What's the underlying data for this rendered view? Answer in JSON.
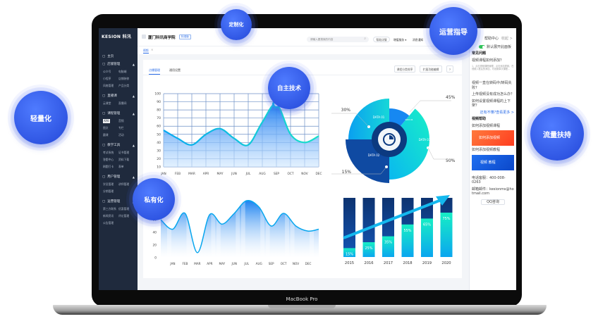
{
  "device": {
    "label": "MacBook Pro"
  },
  "bubbles": [
    "定制化",
    "运营指导",
    "自主技术",
    "轻量化",
    "流量扶持",
    "私有化"
  ],
  "sidebar": {
    "logo": "KESION 科汛",
    "groups": [
      {
        "label": "主页",
        "items": []
      },
      {
        "label": "店铺管理",
        "items": [
          "公众号",
          "电脑端",
          "小程序",
          "店铺装修",
          "风格管理",
          "产品分类"
        ]
      },
      {
        "label": "直播课",
        "items": [
          "云课堂",
          "直播间"
        ]
      },
      {
        "label": "课程管理",
        "items": [
          "视频",
          "音频",
          "图文",
          "专栏",
          "圆课",
          "活动"
        ]
      },
      {
        "label": "教学工具",
        "items": [
          "考试系统",
          "证书管理",
          "答题中心",
          "资料下载",
          "刷题打卡",
          "表单"
        ]
      },
      {
        "label": "用户管理",
        "items": [
          "学员管理",
          "讲师管理",
          "分销管理"
        ]
      },
      {
        "label": "运营管理",
        "items": [
          "第三方联系",
          "优惠管理",
          "新闻资讯",
          "评论管理",
          "公告管理"
        ]
      }
    ]
  },
  "header": {
    "title": "厦门科讯商学院",
    "badge": "标准版",
    "search_placeholder": "请输入要搜索的内容",
    "buttons": [
      "帮助详情",
      "增值服务 ▾",
      "消息通知"
    ],
    "help": "帮助中心",
    "collapse": "收起 >"
  },
  "breadcrumb": "视频",
  "tabs": [
    "点播管理",
    "通用设置"
  ],
  "actions": [
    "课程分类排序",
    "扩展功能编辑",
    "?"
  ],
  "right_panel": {
    "toggle_label": "默认展开此面板",
    "toggle_on": true,
    "faq_title": "常见问题",
    "faq": [
      "视频课程如何添加？",
      "视频一直在转码中/转码失败?",
      "上传视频没有成功怎么办？",
      "如何设置视频课程的上下架？"
    ],
    "faq_answer": "1、点击视频课程管理，点击添加视频，在视频入框后的添加，可设置单次课程...",
    "more": "还有不懂?查看更多 >",
    "video_title": "视频帮助",
    "videos": [
      "如何添加视频课程",
      "如何添加视频教程"
    ],
    "video_captions": [
      "如何添加视频",
      "视频 教程"
    ],
    "phone": "电话客服：400-008-0263",
    "email": "邮箱邮件：kesionms@hotmail.com",
    "qq": "QQ咨询"
  },
  "colors": {
    "accent": "#2b6de8",
    "bubble": "#2f56e6",
    "sidebar": "#1f2a3d",
    "teal": "#17e6c3"
  },
  "chart_data": [
    {
      "type": "area",
      "categories": [
        "JAN",
        "FEB",
        "MAR",
        "APR",
        "MAY",
        "JUN",
        "JUL",
        "AUG",
        "SEP",
        "OCT",
        "NOV",
        "DEC"
      ],
      "values": [
        55,
        45,
        37,
        50,
        57,
        45,
        37,
        65,
        87,
        50,
        40,
        48
      ],
      "yticks": [
        10,
        20,
        30,
        40,
        50,
        60,
        70,
        80,
        90,
        100
      ],
      "ylim": [
        10,
        100
      ],
      "grid": true,
      "highlight": "SEP"
    },
    {
      "type": "area",
      "categories": [
        "JAN",
        "FEB",
        "MAR",
        "APR",
        "MAY",
        "JUN",
        "JUL",
        "AUG",
        "SEP",
        "OCT",
        "NOV",
        "DEC"
      ],
      "values": [
        45,
        70,
        8,
        68,
        53,
        70,
        90,
        80,
        50,
        70,
        50,
        42
      ],
      "yticks": [
        0,
        20,
        40,
        60
      ],
      "ylim": [
        0,
        100
      ]
    },
    {
      "type": "pie",
      "slices": [
        {
          "label": "DATA 01",
          "value": "30%"
        },
        {
          "label": "DATA 02",
          "value": "45%"
        },
        {
          "label": "DATA 03",
          "value": "50%"
        },
        {
          "label": "DATA 04",
          "value": "15%"
        }
      ]
    },
    {
      "type": "bar",
      "categories": [
        "2015",
        "2016",
        "2017",
        "2018",
        "2019",
        "2020"
      ],
      "values": [
        15,
        25,
        35,
        55,
        65,
        75
      ],
      "labels": [
        "15%",
        "25%",
        "35%",
        "55%",
        "65%",
        "75%"
      ],
      "ylim": [
        0,
        100
      ]
    }
  ]
}
